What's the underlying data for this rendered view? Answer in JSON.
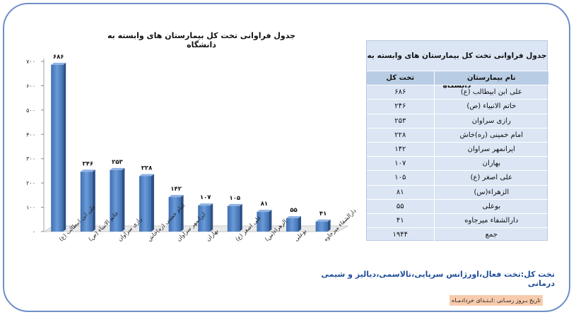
{
  "chart_data": {
    "type": "bar",
    "title": "جدول فراوانی تخت کل بیمارستان های وابسته به  دانشگاه",
    "categories": [
      "علی ابن ابیطالب (ع)",
      "خاتم الانبیاء (ص)",
      "رازی سراوان",
      "امام خمینی (ره)خاش",
      "ایرانمهر سراوان",
      "بهاران",
      "علی اصغر (ع)",
      "الزهراء(س)",
      "بوعلی",
      "دارالشفاء میرجاوه"
    ],
    "values": [
      686,
      246,
      253,
      228,
      142,
      107,
      105,
      81,
      55,
      41
    ],
    "value_labels": [
      "۶۸۶",
      "۲۴۶",
      "۲۵۳",
      "۲۲۸",
      "۱۴۲",
      "۱۰۷",
      "۱۰۵",
      "۸۱",
      "۵۵",
      "۴۱"
    ],
    "yticks": [
      0,
      100,
      200,
      300,
      400,
      500,
      600,
      700
    ],
    "ytick_labels": [
      "۰",
      "۱۰۰",
      "۲۰۰",
      "۳۰۰",
      "۴۰۰",
      "۵۰۰",
      "۶۰۰",
      "۷۰۰"
    ],
    "ylim": [
      0,
      700
    ],
    "grid": false,
    "bar_color": "#4f81bd"
  },
  "table": {
    "title": "جدول فراوانی تخت کل بیمارستان های وابسته به  دانشگاه",
    "col_name": "نام بیمارستان",
    "col_value": "تخت کل",
    "rows": [
      {
        "name": "علی ابن ابیطالب (ع)",
        "value": "۶۸۶"
      },
      {
        "name": "خاتم الانبیاء (ص)",
        "value": "۲۴۶"
      },
      {
        "name": "رازی سراوان",
        "value": "۲۵۳"
      },
      {
        "name": "امام خمینی (ره)خاش",
        "value": "۲۲۸"
      },
      {
        "name": "ایرانمهر سراوان",
        "value": "۱۴۲"
      },
      {
        "name": "بهاران",
        "value": "۱۰۷"
      },
      {
        "name": "علی اصغر (ع)",
        "value": "۱۰۵"
      },
      {
        "name": "الزهراء(س)",
        "value": "۸۱"
      },
      {
        "name": "بوعلی",
        "value": "۵۵"
      },
      {
        "name": "دارالشفاء میرجاوه",
        "value": "۴۱"
      },
      {
        "name": "جمع",
        "value": "۱۹۴۴"
      }
    ]
  },
  "footnote": "تخت کل:تخت فعال،اورژانس سرپایی،تالاسمی،دیالیز و شیمی درمانی",
  "source": "تاریخ بـروز رسـانی  :ابـتـدای خردادمـاه"
}
